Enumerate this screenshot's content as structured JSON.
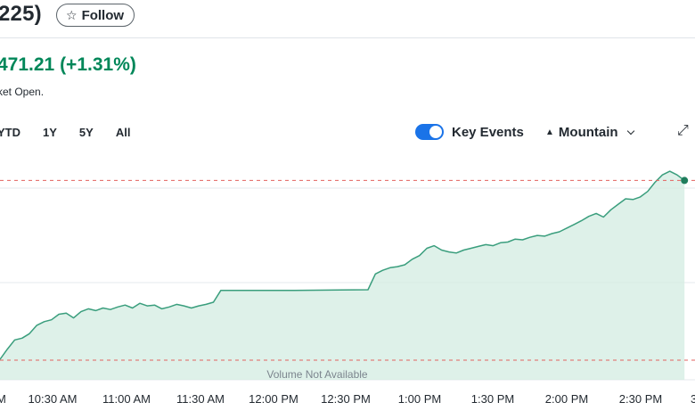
{
  "header": {
    "title": "225)",
    "follow_label": "Follow",
    "follow_icon": "star-outline-icon",
    "price_change": "471.21 (+1.31%)",
    "market_status": "ket Open."
  },
  "toolbar": {
    "ranges": [
      "YTD",
      "1Y",
      "5Y",
      "All"
    ],
    "key_events_label": "Key Events",
    "key_events_on": true,
    "chart_type_label": "Mountain",
    "chart_type_icon": "mountain-icon",
    "expand_icon": "expand-icon"
  },
  "colors": {
    "line": "#3a9e7d",
    "fill": "#d3ece2",
    "reference": "#e3625f",
    "positive_text": "#008759",
    "toggle": "#1a73e8"
  },
  "chart_data": {
    "type": "area",
    "x_tick_labels": [
      "M",
      "10:30 AM",
      "11:00 AM",
      "11:30 AM",
      "12:00 PM",
      "12:30 PM",
      "1:00 PM",
      "1:30 PM",
      "2:00 PM",
      "2:30 PM",
      "3"
    ],
    "volume_note": "Volume Not Available",
    "grid": "horizontal",
    "series": [
      {
        "x": [
          "10:00",
          "10:03",
          "10:06",
          "10:09",
          "10:12",
          "10:15",
          "10:18",
          "10:21",
          "10:24",
          "10:27",
          "10:30",
          "10:33",
          "10:36",
          "10:39",
          "10:42",
          "10:45",
          "10:48",
          "10:51",
          "10:54",
          "10:57",
          "11:00",
          "11:03",
          "11:06",
          "11:09",
          "11:12",
          "11:15",
          "11:18",
          "11:21",
          "11:24",
          "11:27",
          "11:30",
          "12:00",
          "12:30",
          "12:33",
          "12:36",
          "12:39",
          "12:42",
          "12:45",
          "12:48",
          "12:51",
          "12:54",
          "12:57",
          "13:00",
          "13:03",
          "13:06",
          "13:09",
          "13:12",
          "13:15",
          "13:18",
          "13:21",
          "13:24",
          "13:27",
          "13:30",
          "13:33",
          "13:36",
          "13:39",
          "13:42",
          "13:45",
          "13:48",
          "13:51",
          "13:54",
          "13:57",
          "14:00",
          "14:03",
          "14:06",
          "14:09",
          "14:12",
          "14:15",
          "14:18",
          "14:21",
          "14:24",
          "14:27",
          "14:30",
          "14:33",
          "14:36",
          "14:39"
        ],
        "values": [
          0.02,
          0.3,
          0.55,
          0.6,
          0.72,
          0.95,
          1.05,
          1.1,
          1.25,
          1.28,
          1.15,
          1.32,
          1.4,
          1.35,
          1.42,
          1.38,
          1.45,
          1.5,
          1.42,
          1.55,
          1.48,
          1.5,
          1.4,
          1.45,
          1.52,
          1.48,
          1.42,
          1.48,
          1.52,
          1.58,
          1.9,
          1.9,
          1.92,
          2.35,
          2.45,
          2.52,
          2.55,
          2.6,
          2.75,
          2.85,
          3.05,
          3.12,
          3.0,
          2.95,
          2.92,
          3.0,
          3.05,
          3.1,
          3.15,
          3.12,
          3.2,
          3.22,
          3.3,
          3.28,
          3.35,
          3.4,
          3.38,
          3.45,
          3.5,
          3.6,
          3.7,
          3.8,
          3.92,
          4.0,
          3.9,
          4.1,
          4.25,
          4.4,
          4.38,
          4.45,
          4.6,
          4.85,
          5.05,
          5.15,
          5.05,
          4.9
        ]
      }
    ],
    "reference_lines": [
      {
        "label": "upper",
        "value": 4.9
      },
      {
        "label": "previous close",
        "value": 0.0
      }
    ],
    "ylim": [
      -0.05,
      5.25
    ]
  }
}
